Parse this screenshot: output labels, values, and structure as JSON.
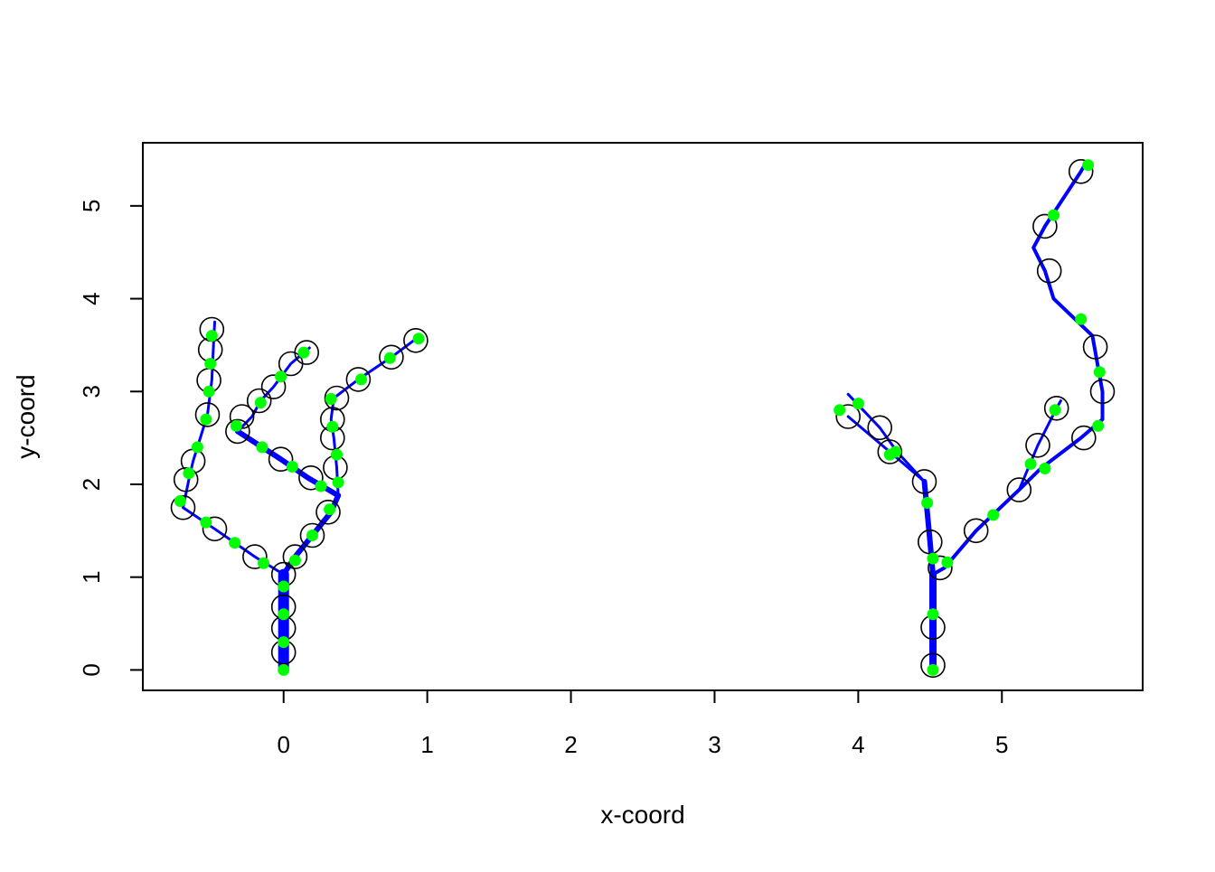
{
  "chart_data": {
    "type": "line",
    "title": "",
    "xlabel": "x-coord",
    "ylabel": "y-coord",
    "xlim": [
      -0.98,
      5.98
    ],
    "ylim": [
      -0.22,
      5.68
    ],
    "x_ticks": [
      0,
      1,
      2,
      3,
      4,
      5
    ],
    "y_ticks": [
      0,
      1,
      2,
      3,
      4,
      5
    ],
    "grid": false,
    "legend": "none",
    "colors": {
      "branch_line": "#0000FF",
      "node_circle": "#000000",
      "midpoint_dot": "#00FF00",
      "frame": "#000000"
    },
    "series": [
      {
        "width": 12,
        "points": [
          [
            0,
            0
          ],
          [
            0,
            1.03
          ]
        ]
      },
      {
        "width": 8,
        "points": [
          [
            4.52,
            0.05
          ],
          [
            4.52,
            1.03
          ]
        ]
      },
      {
        "width": 6,
        "points": [
          [
            0,
            1.03
          ],
          [
            0.08,
            1.22
          ],
          [
            0.2,
            1.45
          ],
          [
            0.33,
            1.7
          ],
          [
            0.38,
            1.88
          ]
        ]
      },
      {
        "width": 6,
        "points": [
          [
            0.38,
            1.88
          ],
          [
            0.17,
            2.07
          ],
          [
            -0.02,
            2.27
          ],
          [
            -0.32,
            2.57
          ]
        ]
      },
      {
        "width": 6,
        "points": [
          [
            4.52,
            1.03
          ],
          [
            4.5,
            1.38
          ],
          [
            4.46,
            2.03
          ]
        ]
      },
      {
        "width": 4,
        "points": [
          [
            4.52,
            1.03
          ],
          [
            4.6,
            1.1
          ],
          [
            4.82,
            1.5
          ],
          [
            5.12,
            1.94
          ],
          [
            5.27,
            2.17
          ],
          [
            5.55,
            2.5
          ],
          [
            5.7,
            2.7
          ],
          [
            5.7,
            3.0
          ],
          [
            5.63,
            3.6
          ],
          [
            5.36,
            4.0
          ],
          [
            5.3,
            4.3
          ],
          [
            5.22,
            4.55
          ],
          [
            5.3,
            4.78
          ],
          [
            5.55,
            5.37
          ],
          [
            5.58,
            5.45
          ]
        ]
      },
      {
        "width": 3,
        "points": [
          [
            0,
            1.03
          ],
          [
            -0.2,
            1.22
          ],
          [
            -0.48,
            1.52
          ],
          [
            -0.7,
            1.75
          ],
          [
            -0.66,
            2.05
          ],
          [
            -0.63,
            2.25
          ],
          [
            -0.53,
            2.75
          ],
          [
            -0.5,
            3.12
          ],
          [
            -0.49,
            3.45
          ],
          [
            -0.48,
            3.75
          ]
        ]
      },
      {
        "width": 3,
        "points": [
          [
            -0.32,
            2.57
          ],
          [
            -0.22,
            2.73
          ],
          [
            -0.16,
            2.9
          ],
          [
            -0.07,
            3.05
          ],
          [
            0.05,
            3.3
          ],
          [
            0.18,
            3.47
          ]
        ]
      },
      {
        "width": 3,
        "points": [
          [
            0.38,
            1.88
          ],
          [
            0.37,
            2.18
          ],
          [
            0.35,
            2.5
          ],
          [
            0.33,
            2.7
          ],
          [
            0.35,
            2.93
          ],
          [
            0.52,
            3.13
          ],
          [
            0.75,
            3.37
          ],
          [
            0.95,
            3.6
          ]
        ]
      },
      {
        "width": 3,
        "points": [
          [
            4.46,
            2.03
          ],
          [
            4.27,
            2.35
          ],
          [
            4.15,
            2.61
          ],
          [
            3.93,
            2.97
          ]
        ]
      },
      {
        "width": 3,
        "points": [
          [
            4.46,
            2.03
          ],
          [
            4.22,
            2.35
          ],
          [
            3.93,
            2.73
          ]
        ]
      },
      {
        "width": 3,
        "points": [
          [
            5.12,
            1.94
          ],
          [
            5.25,
            2.42
          ],
          [
            5.38,
            2.82
          ],
          [
            5.41,
            2.9
          ]
        ]
      }
    ],
    "node_circles": [
      [
        0,
        0.19
      ],
      [
        0,
        0.45
      ],
      [
        0,
        0.68
      ],
      [
        0,
        1.03
      ],
      [
        0.08,
        1.22
      ],
      [
        0.2,
        1.45
      ],
      [
        0.31,
        1.7
      ],
      [
        0.19,
        2.07
      ],
      [
        -0.02,
        2.27
      ],
      [
        -0.32,
        2.57
      ],
      [
        -0.2,
        1.22
      ],
      [
        -0.48,
        1.52
      ],
      [
        -0.7,
        1.75
      ],
      [
        -0.68,
        2.05
      ],
      [
        -0.63,
        2.25
      ],
      [
        -0.53,
        2.75
      ],
      [
        -0.52,
        3.12
      ],
      [
        -0.51,
        3.45
      ],
      [
        -0.5,
        3.67
      ],
      [
        -0.29,
        2.73
      ],
      [
        -0.17,
        2.9
      ],
      [
        -0.07,
        3.05
      ],
      [
        0.05,
        3.3
      ],
      [
        0.16,
        3.42
      ],
      [
        0.36,
        2.18
      ],
      [
        0.34,
        2.5
      ],
      [
        0.34,
        2.7
      ],
      [
        0.37,
        2.93
      ],
      [
        0.52,
        3.13
      ],
      [
        0.75,
        3.37
      ],
      [
        0.92,
        3.55
      ],
      [
        4.52,
        0.05
      ],
      [
        4.52,
        0.46
      ],
      [
        4.57,
        1.1
      ],
      [
        4.5,
        1.38
      ],
      [
        4.46,
        2.03
      ],
      [
        4.22,
        2.35
      ],
      [
        4.15,
        2.61
      ],
      [
        3.93,
        2.73
      ],
      [
        4.82,
        1.5
      ],
      [
        5.12,
        1.94
      ],
      [
        5.25,
        2.42
      ],
      [
        5.38,
        2.82
      ],
      [
        5.57,
        2.5
      ],
      [
        5.7,
        3.0
      ],
      [
        5.65,
        3.48
      ],
      [
        5.33,
        4.3
      ],
      [
        5.3,
        4.78
      ],
      [
        5.55,
        5.37
      ]
    ],
    "midpoint_dots": [
      [
        0,
        0
      ],
      [
        0,
        0.3
      ],
      [
        0,
        0.6
      ],
      [
        0,
        0.9
      ],
      [
        0.08,
        1.18
      ],
      [
        0.2,
        1.45
      ],
      [
        0.32,
        1.73
      ],
      [
        0.38,
        2.02
      ],
      [
        0.26,
        1.98
      ],
      [
        0.06,
        2.19
      ],
      [
        -0.15,
        2.4
      ],
      [
        -0.33,
        2.63
      ],
      [
        -0.14,
        1.15
      ],
      [
        -0.34,
        1.37
      ],
      [
        -0.54,
        1.59
      ],
      [
        -0.72,
        1.82
      ],
      [
        -0.66,
        2.12
      ],
      [
        -0.6,
        2.4
      ],
      [
        -0.54,
        2.7
      ],
      [
        -0.52,
        3.0
      ],
      [
        -0.51,
        3.3
      ],
      [
        -0.5,
        3.6
      ],
      [
        -0.16,
        2.88
      ],
      [
        -0.02,
        3.16
      ],
      [
        0.14,
        3.42
      ],
      [
        0.37,
        2.32
      ],
      [
        0.34,
        2.62
      ],
      [
        0.33,
        2.92
      ],
      [
        0.54,
        3.13
      ],
      [
        0.74,
        3.36
      ],
      [
        0.94,
        3.57
      ],
      [
        4.52,
        0
      ],
      [
        4.52,
        0.6
      ],
      [
        4.52,
        1.2
      ],
      [
        4.62,
        1.16
      ],
      [
        4.48,
        1.8
      ],
      [
        4.26,
        2.35
      ],
      [
        4.22,
        2.32
      ],
      [
        4.0,
        2.87
      ],
      [
        3.87,
        2.8
      ],
      [
        4.94,
        1.67
      ],
      [
        5.2,
        2.22
      ],
      [
        5.3,
        2.17
      ],
      [
        5.37,
        2.8
      ],
      [
        5.67,
        2.63
      ],
      [
        5.68,
        3.21
      ],
      [
        5.55,
        3.78
      ],
      [
        5.36,
        4.9
      ],
      [
        5.6,
        5.44
      ]
    ]
  }
}
